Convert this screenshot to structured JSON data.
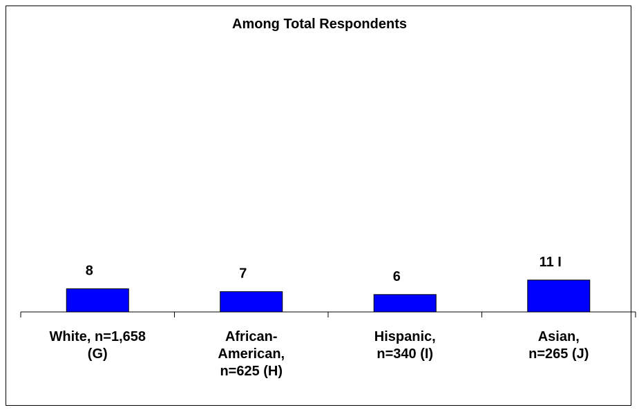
{
  "chart_data": {
    "type": "bar",
    "title": "Among Total Respondents",
    "categories": [
      "White, n=1,658\n(G)",
      "African-\nAmerican,\n  n=625 (H)",
      "Hispanic,\nn=340 (I)",
      "Asian,\n  n=265 (J)"
    ],
    "values": [
      8,
      7,
      6,
      11
    ],
    "data_labels": [
      "8",
      "7",
      "6",
      "11 I"
    ],
    "bar_color": "#0000FF",
    "ylim": [
      0,
      100
    ],
    "grid": false,
    "legend": "none"
  }
}
